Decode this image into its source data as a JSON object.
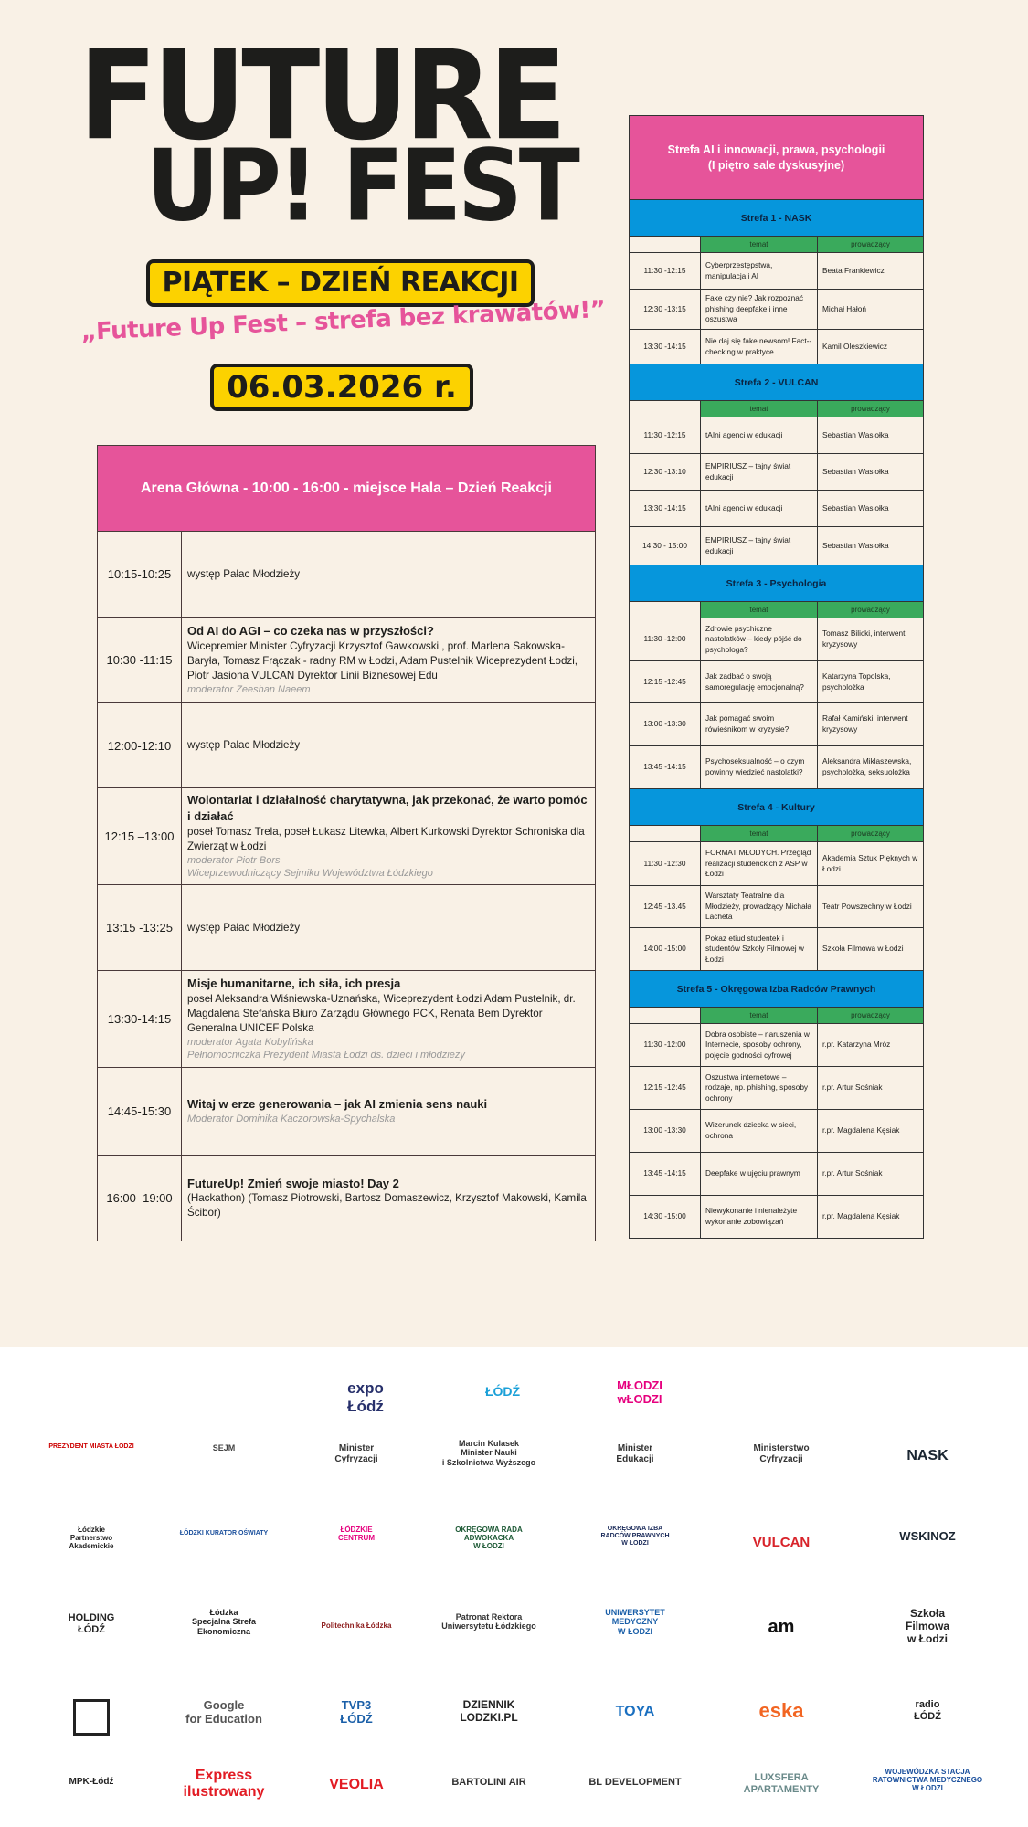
{
  "header": {
    "title_line1": "FUTURE",
    "title_line2": "UP! FEST",
    "day_label": "PIĄTEK – DZIEŃ REAKCJI",
    "slogan": "„Future Up Fest – strefa bez krawatów!”",
    "date": "06.03.2026 r."
  },
  "colors": {
    "pink": "#e6549a",
    "blue": "#0696dc",
    "green": "#3aaa5c",
    "yellow": "#fcd200",
    "background": "#f9f1e6"
  },
  "main_stage": {
    "title": "Arena Główna - 10:00 - 16:00 - miejsce Hala – Dzień Reakcji",
    "rows": [
      {
        "time": "10:15-10:25",
        "title": "",
        "text": "występ Pałac Młodzieży",
        "moderator": "",
        "moderator_role": ""
      },
      {
        "time": "10:30 -11:15",
        "title": "Od AI do AGI – co czeka nas w przyszłości?",
        "text": "Wicepremier Minister Cyfryzacji Krzysztof Gawkowski , prof. Marlena Sakowska-Baryła, Tomasz Frączak - radny RM w Łodzi, Adam Pustelnik Wiceprezydent Łodzi, Piotr Jasiona VULCAN Dyrektor Linii Biznesowej Edu",
        "moderator": "moderator Zeeshan Naeem",
        "moderator_role": ""
      },
      {
        "time": "12:00-12:10",
        "title": "",
        "text": "występ Pałac Młodzieży",
        "moderator": "",
        "moderator_role": ""
      },
      {
        "time": "12:15 –13:00",
        "title": "Wolontariat i działalność charytatywna, jak przekonać, że warto pomóc i działać",
        "text": "poseł Tomasz Trela, poseł Łukasz Litewka, Albert Kurkowski Dyrektor Schroniska dla Zwierząt w Łodzi",
        "moderator": "moderator Piotr Bors",
        "moderator_role": "Wiceprzewodniczący Sejmiku Województwa Łódzkiego"
      },
      {
        "time": "13:15 -13:25",
        "title": "",
        "text": "występ Pałac Młodzieży",
        "moderator": "",
        "moderator_role": ""
      },
      {
        "time": "13:30-14:15",
        "title": "Misje humanitarne, ich siła, ich presja",
        "text": "poseł Aleksandra Wiśniewska-Uznańska, Wiceprezydent Łodzi Adam Pustelnik, dr. Magdalena Stefańska Biuro Zarządu Głównego PCK, Renata Bem Dyrektor Generalna UNICEF Polska",
        "moderator": "moderator  Agata Kobylińska",
        "moderator_role": "Pełnomocniczka Prezydent Miasta Łodzi ds. dzieci i młodzieży"
      },
      {
        "time": "14:45-15:30",
        "title": "Witaj w erze generowania – jak AI zmienia sens nauki",
        "text": "",
        "moderator": "Moderator Dominika Kaczorowska-Spychalska",
        "moderator_role": ""
      },
      {
        "time": "16:00–19:00",
        "title": "FutureUp! Zmień swoje miasto! Day 2",
        "text": "(Hackathon) (Tomasz Piotrowski, Bartosz Domaszewicz, Krzysztof Makowski, Kamila Ścibor)",
        "moderator": "",
        "moderator_role": ""
      }
    ]
  },
  "side": {
    "title_line1": "Strefa AI i innowacji, prawa, psychologii",
    "title_line2": "(I piętro sale dyskusyjne)",
    "col_topic": "temat",
    "col_host": "prowadzący",
    "zones": [
      {
        "name": "Strefa 1 - NASK",
        "rows": [
          {
            "time": "11:30 -12:15",
            "topic": "Cyberprzestępstwa, manipulacja i AI",
            "host": "Beata Frankiewicz"
          },
          {
            "time": "12:30 -13:15",
            "topic": "Fake czy nie? Jak rozpoznać phishing deepfake i inne oszustwa",
            "host": "Michał Hałoń"
          },
          {
            "time": "13:30 -14:15",
            "topic": "Nie daj się fake newsom! Fact--checking w praktyce",
            "host": "Kamil Oleszkiewicz"
          }
        ]
      },
      {
        "name": "Strefa 2 - VULCAN",
        "rows": [
          {
            "time": "11:30 -12:15",
            "topic": "tAIni agenci w edukacji",
            "host": "Sebastian Wasiołka"
          },
          {
            "time": "12:30 -13:10",
            "topic": "EMPIRIUSZ – tajny świat edukacji",
            "host": "Sebastian Wasiołka"
          },
          {
            "time": "13:30 -14:15",
            "topic": "tAIni agenci w edukacji",
            "host": "Sebastian Wasiołka"
          },
          {
            "time": "14:30 -  15:00",
            "topic": "EMPIRIUSZ – tajny świat edukacji",
            "host": "Sebastian Wasiołka"
          }
        ]
      },
      {
        "name": "Strefa 3 - Psychologia",
        "rows": [
          {
            "time": "11:30 -12:00",
            "topic": "Zdrowie psychiczne nastolatków – kiedy pójść do psychologa?",
            "host": "Tomasz Bilicki, interwent kryzysowy"
          },
          {
            "time": "12:15 -12:45",
            "topic": "Jak zadbać o swoją samoregulację emocjonalną?",
            "host": "Katarzyna Topolska, psycholożka"
          },
          {
            "time": "13:00 -13:30",
            "topic": "Jak pomagać swoim rówieśnikom w kryzysie?",
            "host": "Rafał Kamiński, interwent kryzysowy"
          },
          {
            "time": "13:45 -14:15",
            "topic": "Psychoseksualność – o czym powinny wiedzieć nastolatki?",
            "host": "Aleksandra Miklaszewska, psycholożka, seksuolożka"
          }
        ]
      },
      {
        "name": "Strefa 4 - Kultury",
        "rows": [
          {
            "time": "11:30 -12:30",
            "topic": "FORMAT MŁODYCH. Przegląd realizacji studenckich z ASP w Łodzi",
            "host": "Akademia Sztuk Pięknych w Łodzi"
          },
          {
            "time": "12:45 -13.45",
            "topic": "Warsztaty Teatralne dla Młodzieży, prowadzący Michała Lacheta",
            "host": "Teatr Powszechny w Łodzi"
          },
          {
            "time": "14:00 -15:00",
            "topic": "Pokaz etiud studentek i studentów Szkoły Filmowej w Łodzi",
            "host": "Szkoła Filmowa w Łodzi"
          }
        ]
      },
      {
        "name": "Strefa 5 - Okręgowa Izba Radców Prawnych",
        "rows": [
          {
            "time": "11:30 -12:00",
            "topic": "Dobra osobiste – naruszenia w Internecie, sposoby ochrony, pojęcie godności cyfrowej",
            "host": "r.pr. Katarzyna Mróz"
          },
          {
            "time": "12:15 -12:45",
            "topic": "Oszustwa internetowe – rodzaje, np. phishing, sposoby ochrony",
            "host": "r.pr. Artur Sośniak"
          },
          {
            "time": "13:00 -13:30",
            "topic": "Wizerunek dziecka w sieci, ochrona",
            "host": "r.pr. Magdalena Kęsiak"
          },
          {
            "time": "13:45 -14:15",
            "topic": "Deepfake w ujęciu prawnym",
            "host": "r.pr. Artur Sośniak"
          },
          {
            "time": "14:30 -15:00",
            "topic": "Niewykonanie i nienależyte wykonanie zobowiązań",
            "host": "r.pr. Magdalena Kęsiak"
          }
        ]
      }
    ]
  },
  "logos": [
    {
      "text": "expo\nŁódź",
      "color": "#27306b"
    },
    {
      "text": "ŁÓDŹ",
      "color": "#1aa0d8"
    },
    {
      "text": "MŁODZI\nwŁODZI",
      "color": "#e6007e"
    },
    {
      "text": "PREZYDENT MIASTA ŁODZI",
      "color": "#c00"
    },
    {
      "text": "SEJM",
      "color": "#444"
    },
    {
      "text": "Minister\nCyfryzacji",
      "color": "#333"
    },
    {
      "text": "Marcin Kulasek\nMinister Nauki\ni Szkolnictwa Wyższego",
      "color": "#333"
    },
    {
      "text": "Minister\nEdukacji",
      "color": "#333"
    },
    {
      "text": "Ministerstwo\nCyfryzacji",
      "color": "#333"
    },
    {
      "text": "NASK",
      "color": "#1b2632"
    },
    {
      "text": "Łódzkie\nPartnerstwo\nAkademickie",
      "color": "#222"
    },
    {
      "text": "ŁÓDZKI KURATOR OŚWIATY",
      "color": "#1a4f9c"
    },
    {
      "text": "ŁÓDZKIE\nCENTRUM",
      "color": "#e6007e"
    },
    {
      "text": "OKRĘGOWA RADA\nADWOKACKA\nW ŁODZI",
      "color": "#1e5a36"
    },
    {
      "text": "OKRĘGOWA IZBA\nRADCÓW PRAWNYCH\nW ŁODZI",
      "color": "#1b2b5a"
    },
    {
      "text": "VULCAN",
      "color": "#d8232a"
    },
    {
      "text": "WSKINOZ",
      "color": "#1b2632"
    },
    {
      "text": "HOLDING\nŁÓDŹ",
      "color": "#222"
    },
    {
      "text": "Łódzka\nSpecjalna Strefa\nEkonomiczna",
      "color": "#222"
    },
    {
      "text": "Politechnika Łódzka",
      "color": "#8b1a1a"
    },
    {
      "text": "Patronat Rektora\nUniwersytetu Łódzkiego",
      "color": "#333"
    },
    {
      "text": "UNIWERSYTET\nMEDYCZNY\nW ŁODZI",
      "color": "#1a5fa8"
    },
    {
      "text": "am",
      "color": "#111"
    },
    {
      "text": "Szkoła\nFilmowa\nw Łodzi",
      "color": "#222"
    },
    {
      "text": "",
      "color": "#222"
    },
    {
      "text": "Google\nfor Education",
      "color": "#555"
    },
    {
      "text": "TVP3\nŁÓDŹ",
      "color": "#1a5fa8"
    },
    {
      "text": "DZIENNIK\nLODZKI.PL",
      "color": "#222"
    },
    {
      "text": "TOYA",
      "color": "#1a6fc0"
    },
    {
      "text": "eska",
      "color": "#f26522"
    },
    {
      "text": "radio\nŁÓDŹ",
      "color": "#222"
    },
    {
      "text": "MPK-Łódź",
      "color": "#222"
    },
    {
      "text": "Express\nilustrowany",
      "color": "#e21b23"
    },
    {
      "text": "VEOLIA",
      "color": "#e21b23"
    },
    {
      "text": "BARTOLINI AIR",
      "color": "#333"
    },
    {
      "text": "BL DEVELOPMENT",
      "color": "#333"
    },
    {
      "text": "LUXSFERA\nAPARTAMENTY",
      "color": "#6a8a8a"
    },
    {
      "text": "WOJEWÓDZKA STACJA\nRATOWNICTWA MEDYCZNEGO\nW ŁODZI",
      "color": "#1a4f9c"
    }
  ]
}
